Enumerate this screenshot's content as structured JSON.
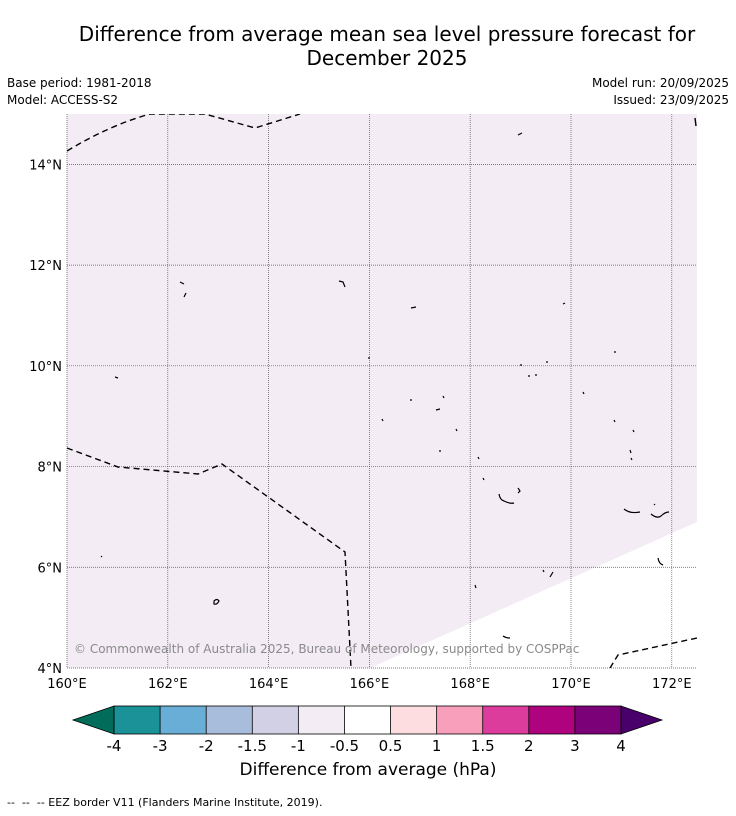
{
  "title_line1": "Difference from average mean sea level pressure forecast for",
  "title_line2": "December 2025",
  "meta_left": [
    "Base period: 1981-2018",
    "Model: ACCESS-S2"
  ],
  "meta_right": [
    "Model run: 20/09/2025",
    "Issued: 23/09/2025"
  ],
  "map": {
    "lon_min": 160,
    "lon_max": 172.5,
    "lat_min": 4,
    "lat_max": 15,
    "lon_ticks": [
      "160°E",
      "162°E",
      "164°E",
      "166°E",
      "168°E",
      "170°E",
      "172°E"
    ],
    "lat_ticks": [
      "4°N",
      "6°N",
      "8°N",
      "10°N",
      "12°N",
      "14°N"
    ],
    "field_fill_color": "#f3ecf5",
    "field_category": "-1 to -0.5",
    "copyright": "© Commonwealth of Australia 2025, Bureau of Meteorology, supported by COSPPac"
  },
  "colorbar": {
    "labels": [
      "-4",
      "-3",
      "-2",
      "-1.5",
      "-1",
      "-0.5",
      "0.5",
      "1",
      "1.5",
      "2",
      "3",
      "4"
    ],
    "colors": [
      "#1b9298",
      "#68aed6",
      "#a8bcdb",
      "#d2d0e5",
      "#f3ecf5",
      "#ffffff",
      "#fddde0",
      "#f89fbb",
      "#dc3c9c",
      "#ae027e",
      "#7a0177"
    ],
    "low_extend_color": "#016c59",
    "high_extend_color": "#49006a",
    "title": "Difference from average (hPa)"
  },
  "footer": "--  --  -- EEZ border V11 (Flanders Marine Institute, 2019)."
}
